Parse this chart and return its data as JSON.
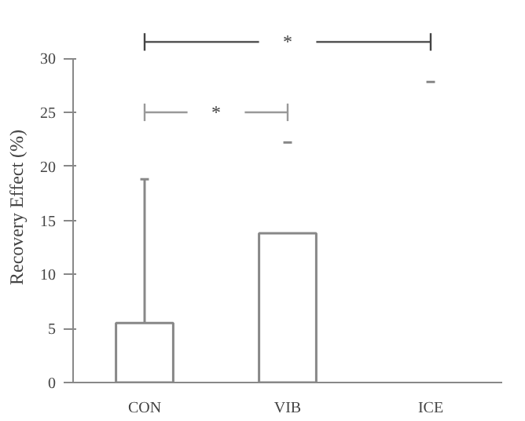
{
  "chart_data": {
    "type": "bar",
    "ylabel": "Recovery Effect (%)",
    "categories": [
      "CON",
      "VIB",
      "ICE"
    ],
    "values": [
      5.5,
      13.8,
      0
    ],
    "errors": [
      [
        5.5,
        18.8
      ],
      [
        22.2,
        22.2
      ],
      [
        27.8,
        27.8
      ]
    ],
    "color": "#ffffff",
    "ylim": [
      0,
      30
    ],
    "yticks": [
      0,
      5,
      10,
      15,
      20,
      25,
      30
    ],
    "grid": false,
    "annotations": [
      "*",
      "*"
    ]
  }
}
